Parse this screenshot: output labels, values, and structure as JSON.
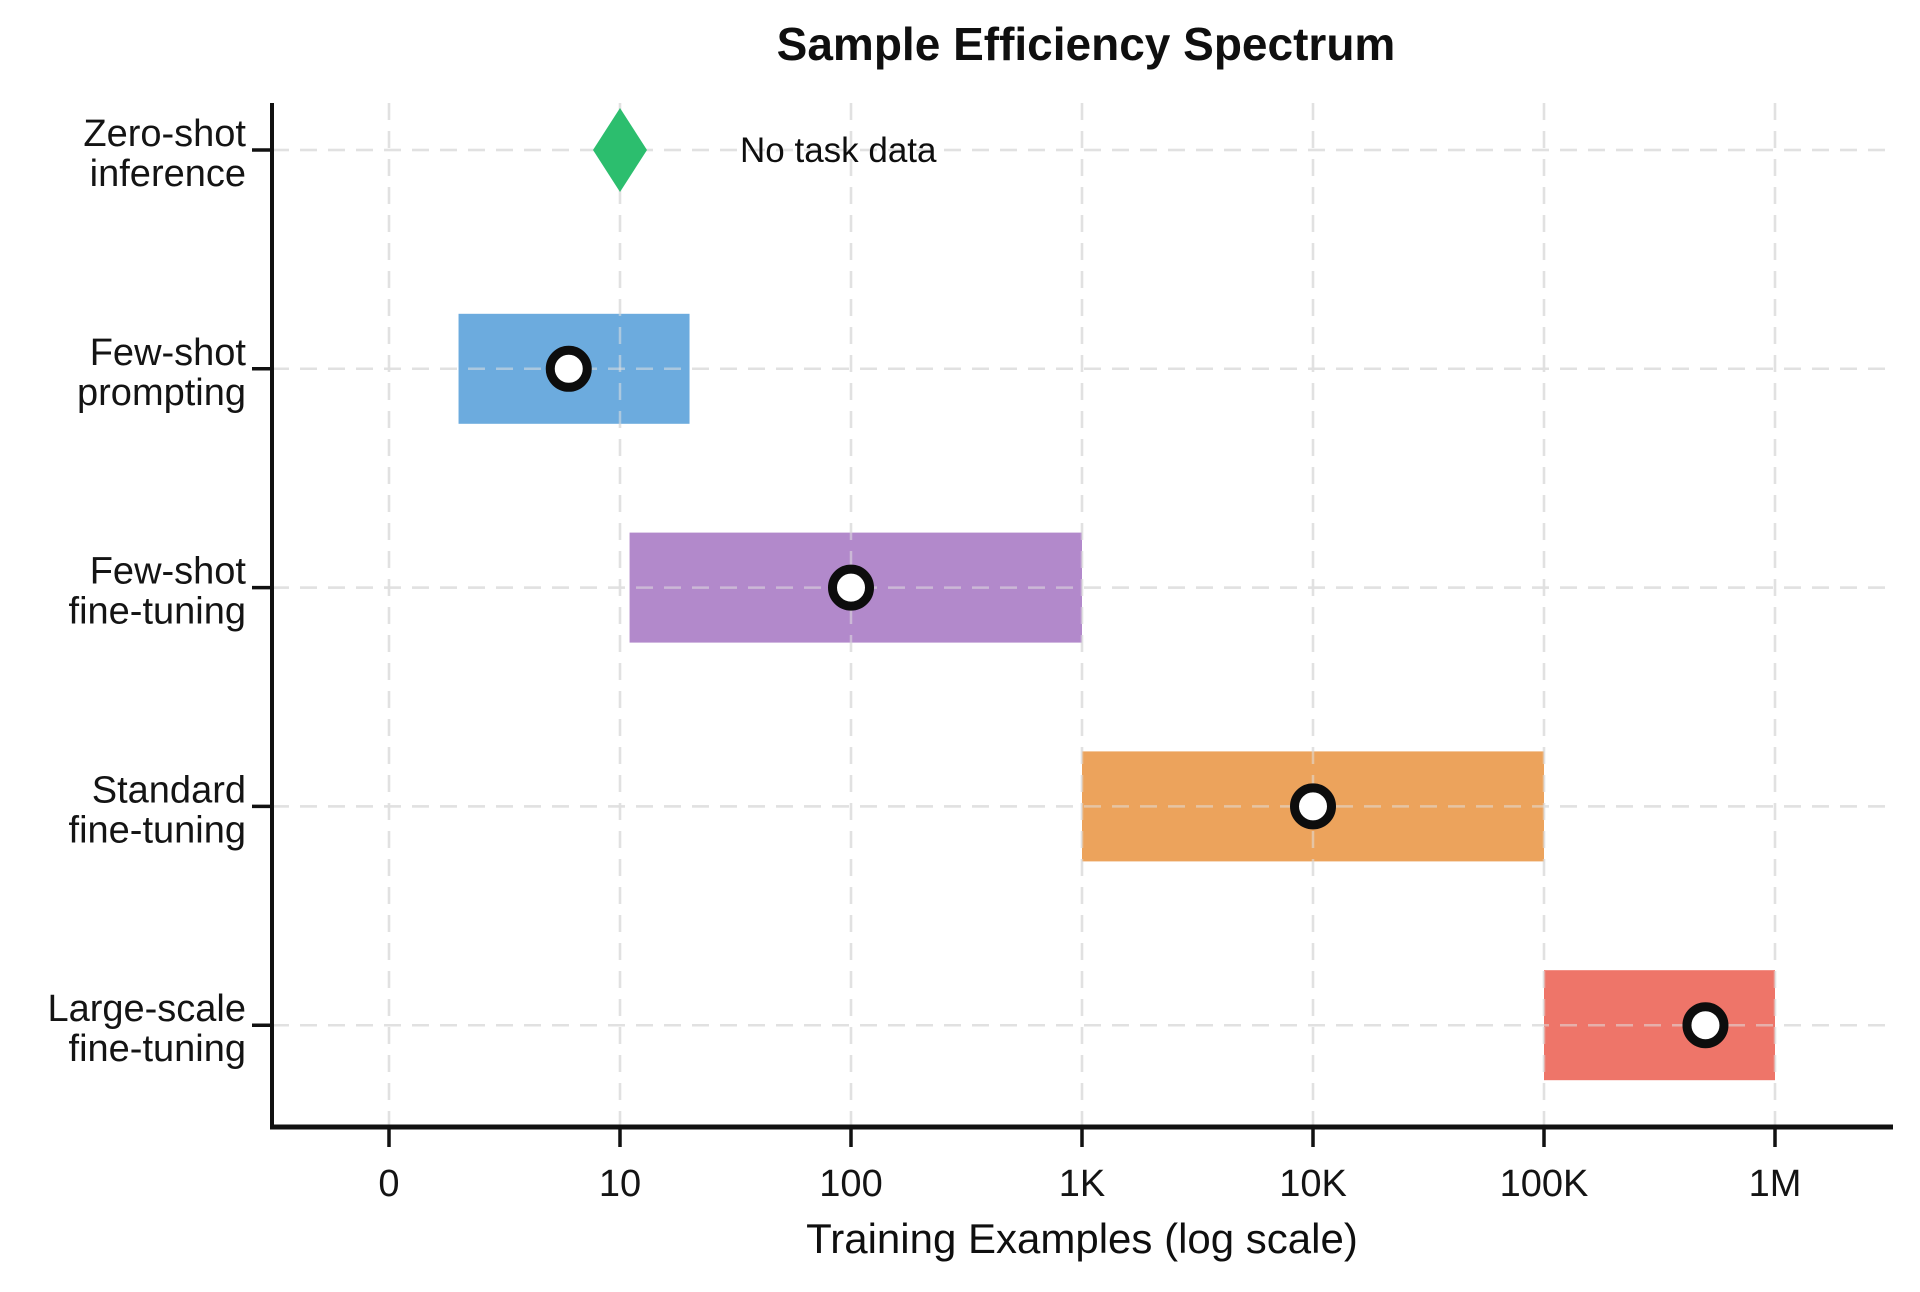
{
  "chart_data": {
    "type": "range_bar",
    "title": "Sample Efficiency Spectrum",
    "xlabel": "Training Examples (log scale)",
    "x_scale": "log",
    "grid": "dashed",
    "x_ticks": [
      {
        "label": "0",
        "value": 1
      },
      {
        "label": "10",
        "value": 10
      },
      {
        "label": "100",
        "value": 100
      },
      {
        "label": "1K",
        "value": 1000
      },
      {
        "label": "10K",
        "value": 10000
      },
      {
        "label": "100K",
        "value": 100000
      },
      {
        "label": "1M",
        "value": 1000000
      }
    ],
    "categories": [
      {
        "label_lines": [
          "Zero-shot",
          "inference"
        ],
        "marker": "diamond",
        "value": 10,
        "color": "#2cbe6e",
        "annotation": "No task data"
      },
      {
        "label_lines": [
          "Few-shot",
          "prompting"
        ],
        "marker": "range_bar",
        "range": [
          2,
          20
        ],
        "typical": 6,
        "color": "#6cabde"
      },
      {
        "label_lines": [
          "Few-shot",
          "fine-tuning"
        ],
        "marker": "range_bar",
        "range": [
          11,
          1000
        ],
        "typical": 100,
        "color": "#b289cb"
      },
      {
        "label_lines": [
          "Standard",
          "fine-tuning"
        ],
        "marker": "range_bar",
        "range": [
          1000,
          100000
        ],
        "typical": 10000,
        "color": "#eca35c"
      },
      {
        "label_lines": [
          "Large-scale",
          "fine-tuning"
        ],
        "marker": "range_bar",
        "range": [
          100000,
          1000000
        ],
        "typical": 500000,
        "color": "#ee7569"
      }
    ],
    "typical_marker_style": {
      "shape": "circle",
      "fill": "#ffffff",
      "stroke": "#0d0d0d"
    },
    "colors": {
      "axis": "#111111",
      "gridline": "#e0e0e0",
      "text": "#141414"
    }
  }
}
